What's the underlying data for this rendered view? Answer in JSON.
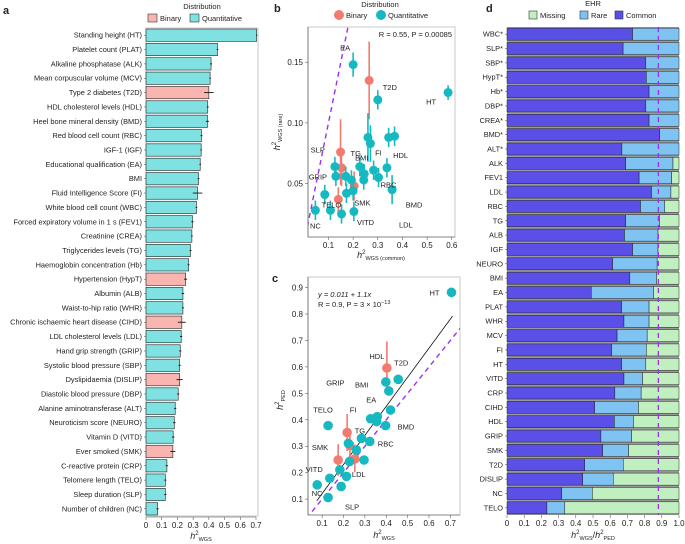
{
  "panels": {
    "a": "a",
    "b": "b",
    "c": "c",
    "d": "d"
  },
  "legend_distribution": {
    "title": "Distribution",
    "items": [
      "Binary",
      "Quantitative"
    ]
  },
  "legend_ehr": {
    "title": "EHR",
    "items": [
      "Missing",
      "Rare",
      "Common"
    ]
  },
  "colors": {
    "binary_bar": "#f9b6b1",
    "quant_bar": "#7fe1e1",
    "binary_point": "#f27b70",
    "quant_point": "#17b9c1",
    "common": "#5a4fe6",
    "rare": "#7ec3f1",
    "missing": "#c0f0c0",
    "reference_line": "#9b30f5"
  },
  "chart_data": [
    {
      "panel": "a",
      "type": "bar",
      "orientation": "horizontal",
      "xlabel": {
        "base": "h",
        "sup": "2",
        "sub": "WGS"
      },
      "xlim": [
        0,
        0.7
      ],
      "xticks": [
        "0",
        "0.1",
        "0.2",
        "0.3",
        "0.4",
        "0.5",
        "0.6",
        "0.7"
      ],
      "categories": [
        "Standing height (HT)",
        "Platelet count (PLAT)",
        "Alkaline phosphatase (ALK)",
        "Mean corpuscular volume (MCV)",
        "Type 2 diabetes (T2D)",
        "HDL cholesterol levels (HDL)",
        "Heel bone mineral density (BMD)",
        "Red blood cell count (RBC)",
        "IGF-1 (IGF)",
        "Educational qualification (EA)",
        "BMI",
        "Fluid Intelligence Score (FI)",
        "White blood cell count (WBC)",
        "Forced expiratory volume in 1 s (FEV1)",
        "Creatinine (CREA)",
        "Triglycerides levels (TG)",
        "Haemoglobin concentration (Hb)",
        "Hypertension (HypT)",
        "Albumin (ALB)",
        "Waist-to-hip ratio (WHR)",
        "Chronic ischaemic heart disease (CIHD)",
        "LDL cholesterol levels (LDL)",
        "Hand grip strength (GRIP)",
        "Systolic blood pressure (SBP)",
        "Dyslipidaemia (DISLIP)",
        "Diastolic blood pressure (DBP)",
        "Alanine aminotransferase (ALT)",
        "Neuroticism score (NEURO)",
        "Vitamin D (VITD)",
        "Ever smoked (SMK)",
        "C-reactive protein (CRP)",
        "Telomere length (TELO)",
        "Sleep duration (SLP)",
        "Number of children (NC)"
      ],
      "values": [
        0.704,
        0.455,
        0.414,
        0.408,
        0.4,
        0.393,
        0.391,
        0.353,
        0.351,
        0.345,
        0.334,
        0.328,
        0.321,
        0.296,
        0.292,
        0.283,
        0.271,
        0.252,
        0.235,
        0.235,
        0.228,
        0.224,
        0.218,
        0.214,
        0.214,
        0.205,
        0.186,
        0.18,
        0.173,
        0.171,
        0.133,
        0.123,
        0.123,
        0.074
      ],
      "errors": [
        0.004,
        0.005,
        0.006,
        0.005,
        0.03,
        0.006,
        0.01,
        0.006,
        0.005,
        0.005,
        0.006,
        0.03,
        0.005,
        0.007,
        0.005,
        0.006,
        0.006,
        0.01,
        0.008,
        0.006,
        0.025,
        0.007,
        0.007,
        0.007,
        0.02,
        0.007,
        0.007,
        0.008,
        0.008,
        0.016,
        0.008,
        0.007,
        0.007,
        0.007
      ],
      "distribution": [
        "Quantitative",
        "Quantitative",
        "Quantitative",
        "Quantitative",
        "Binary",
        "Quantitative",
        "Quantitative",
        "Quantitative",
        "Quantitative",
        "Quantitative",
        "Quantitative",
        "Quantitative",
        "Quantitative",
        "Quantitative",
        "Quantitative",
        "Quantitative",
        "Quantitative",
        "Binary",
        "Quantitative",
        "Quantitative",
        "Binary",
        "Quantitative",
        "Quantitative",
        "Quantitative",
        "Binary",
        "Quantitative",
        "Quantitative",
        "Quantitative",
        "Quantitative",
        "Binary",
        "Quantitative",
        "Quantitative",
        "Quantitative",
        "Quantitative"
      ]
    },
    {
      "panel": "b",
      "type": "scatter",
      "annotation": "R = 0.55, P = 0.00085",
      "xlabel": {
        "base": "h",
        "sup": "2",
        "sub": "WGS (common)"
      },
      "ylabel": {
        "base": "h",
        "sup": "2",
        "sub": "WGS (rare)"
      },
      "xlim": [
        0.017,
        0.613
      ],
      "ylim": [
        0.006,
        0.179
      ],
      "xticks": [
        0.1,
        0.2,
        0.3,
        0.4,
        0.5,
        0.6
      ],
      "yticks": [
        0.05,
        0.1,
        0.15
      ],
      "reference_line": "y = x",
      "points": [
        {
          "x": 0.2,
          "y": 0.148,
          "d": "Quantitative",
          "label": "EA",
          "err": 0.01
        },
        {
          "x": 0.265,
          "y": 0.135,
          "d": "Binary",
          "err": 0.032
        },
        {
          "x": 0.3,
          "y": 0.119,
          "d": "Quantitative",
          "label": "T2D",
          "err": 0.008
        },
        {
          "x": 0.585,
          "y": 0.125,
          "d": "Quantitative",
          "label": "HT",
          "err": 0.006
        },
        {
          "x": 0.26,
          "y": 0.088,
          "d": "Quantitative",
          "err": 0.02
        },
        {
          "x": 0.27,
          "y": 0.083,
          "d": "Quantitative",
          "label": "FI",
          "err": 0.015
        },
        {
          "x": 0.344,
          "y": 0.088,
          "d": "Quantitative",
          "err": 0.008
        },
        {
          "x": 0.368,
          "y": 0.089,
          "d": "Quantitative",
          "label": "HDL",
          "err": 0.008
        },
        {
          "x": 0.149,
          "y": 0.076,
          "d": "Binary",
          "label": "TG",
          "err": 0.027
        },
        {
          "x": 0.153,
          "y": 0.063,
          "d": "Binary",
          "err": 0.015
        },
        {
          "x": 0.204,
          "y": 0.048,
          "d": "Binary",
          "err": 0.012
        },
        {
          "x": 0.14,
          "y": 0.037,
          "d": "Binary",
          "label": "SMK",
          "err": 0.01
        },
        {
          "x": 0.126,
          "y": 0.064,
          "d": "Quantitative",
          "err": 0.008
        },
        {
          "x": 0.13,
          "y": 0.056,
          "d": "Quantitative",
          "label": "GRIP",
          "err": 0.008
        },
        {
          "x": 0.17,
          "y": 0.056,
          "d": "Quantitative",
          "err": 0.008
        },
        {
          "x": 0.193,
          "y": 0.053,
          "d": "Quantitative",
          "err": 0.008
        },
        {
          "x": 0.227,
          "y": 0.064,
          "d": "Quantitative",
          "label": "BMI",
          "err": 0.008
        },
        {
          "x": 0.245,
          "y": 0.058,
          "d": "Quantitative",
          "err": 0.008
        },
        {
          "x": 0.243,
          "y": 0.053,
          "d": "Quantitative",
          "err": 0.008
        },
        {
          "x": 0.283,
          "y": 0.061,
          "d": "Quantitative",
          "err": 0.008
        },
        {
          "x": 0.303,
          "y": 0.055,
          "d": "Quantitative",
          "label": "RBC",
          "err": 0.008
        },
        {
          "x": 0.337,
          "y": 0.063,
          "d": "Quantitative",
          "err": 0.008
        },
        {
          "x": 0.358,
          "y": 0.045,
          "d": "Quantitative",
          "label": "BMD",
          "err": 0.012
        },
        {
          "x": 0.085,
          "y": 0.041,
          "d": "Quantitative",
          "label": "SLP",
          "err": 0.008
        },
        {
          "x": 0.173,
          "y": 0.042,
          "d": "Quantitative",
          "err": 0.008
        },
        {
          "x": 0.2,
          "y": 0.044,
          "d": "Quantitative",
          "err": 0.008
        },
        {
          "x": 0.047,
          "y": 0.028,
          "d": "Quantitative",
          "label": "NC",
          "err": 0.008
        },
        {
          "x": 0.108,
          "y": 0.028,
          "d": "Quantitative",
          "label": "TELO",
          "err": 0.008
        },
        {
          "x": 0.153,
          "y": 0.025,
          "d": "Quantitative",
          "label": "VITD",
          "err": 0.008
        },
        {
          "x": 0.203,
          "y": 0.027,
          "d": "Quantitative",
          "label": "LDL",
          "err": 0.008
        }
      ]
    },
    {
      "panel": "c",
      "type": "scatter",
      "annotation": [
        "y = 0.011 + 1.1x",
        "R = 0.9, P = 3 × 10",
        "−13"
      ],
      "xlabel": {
        "base": "h",
        "sup": "2",
        "sub": "WGS"
      },
      "ylabel": {
        "base": "h",
        "sup": "2",
        "sub": "PED"
      },
      "xlim": [
        0.034,
        0.745
      ],
      "ylim": [
        0.04,
        0.94
      ],
      "xticks": [
        0.1,
        0.2,
        0.3,
        0.4,
        0.5,
        0.6,
        0.7
      ],
      "yticks": [
        0.1,
        0.2,
        0.3,
        0.4,
        0.5,
        0.6,
        0.7,
        0.8,
        0.9
      ],
      "fit": {
        "intercept": 0.011,
        "slope": 1.1,
        "x_range": [
          0.075,
          0.71
        ]
      },
      "reference_line": "y = x",
      "points": [
        {
          "x": 0.705,
          "y": 0.882,
          "d": "Quantitative",
          "label": "HT"
        },
        {
          "x": 0.403,
          "y": 0.596,
          "d": "Binary",
          "label": "HDL",
          "err": 0.1
        },
        {
          "x": 0.398,
          "y": 0.543,
          "d": "Quantitative"
        },
        {
          "x": 0.456,
          "y": 0.553,
          "d": "Quantitative",
          "label": "T2D"
        },
        {
          "x": 0.412,
          "y": 0.509,
          "d": "Quantitative"
        },
        {
          "x": 0.327,
          "y": 0.404,
          "d": "Quantitative",
          "label": "BMI"
        },
        {
          "x": 0.358,
          "y": 0.412,
          "d": "Quantitative",
          "label": "EA"
        },
        {
          "x": 0.355,
          "y": 0.393,
          "d": "Quantitative"
        },
        {
          "x": 0.42,
          "y": 0.437,
          "d": "Quantitative"
        },
        {
          "x": 0.397,
          "y": 0.378,
          "d": "Quantitative",
          "label": "BMD"
        },
        {
          "x": 0.128,
          "y": 0.378,
          "d": "Quantitative",
          "label": "TELO"
        },
        {
          "x": 0.217,
          "y": 0.352,
          "d": "Binary",
          "label": "FI",
          "err": 0.07
        },
        {
          "x": 0.23,
          "y": 0.303,
          "d": "Binary",
          "label": "TG",
          "err": 0.05
        },
        {
          "x": 0.175,
          "y": 0.248,
          "d": "Binary",
          "label": "SMK",
          "err": 0.06
        },
        {
          "x": 0.253,
          "y": 0.252,
          "d": "Binary",
          "label": "LDL",
          "err": 0.05
        },
        {
          "x": 0.223,
          "y": 0.311,
          "d": "Quantitative",
          "label": "GRIP"
        },
        {
          "x": 0.284,
          "y": 0.33,
          "d": "Quantitative"
        },
        {
          "x": 0.323,
          "y": 0.318,
          "d": "Quantitative",
          "label": "RBC"
        },
        {
          "x": 0.296,
          "y": 0.248,
          "d": "Quantitative"
        },
        {
          "x": 0.228,
          "y": 0.242,
          "d": "Quantitative"
        },
        {
          "x": 0.26,
          "y": 0.286,
          "d": "Quantitative"
        },
        {
          "x": 0.214,
          "y": 0.186,
          "d": "Quantitative"
        },
        {
          "x": 0.183,
          "y": 0.211,
          "d": "Quantitative"
        },
        {
          "x": 0.136,
          "y": 0.179,
          "d": "Quantitative",
          "label": "VITD"
        },
        {
          "x": 0.189,
          "y": 0.148,
          "d": "Quantitative"
        },
        {
          "x": 0.077,
          "y": 0.154,
          "d": "Quantitative",
          "label": "NC"
        },
        {
          "x": 0.128,
          "y": 0.106,
          "d": "Quantitative",
          "label": "SLP"
        }
      ]
    },
    {
      "panel": "d",
      "type": "bar",
      "orientation": "horizontal",
      "stacked": true,
      "xlabel": {
        "base": "h",
        "sup": "2",
        "sub": "WGS",
        "sep": "/",
        "base2": "h",
        "sup2": "2",
        "sub2": "PED"
      },
      "xlim": [
        0,
        1.0
      ],
      "xticks": [
        "0",
        "0.1",
        "0.2",
        "0.3",
        "0.4",
        "0.5",
        "0.6",
        "0.7",
        "0.8",
        "0.9",
        "1.0"
      ],
      "reference_value": 0.88,
      "categories": [
        "WBC*",
        "SLP*",
        "SBP*",
        "HypT*",
        "Hb*",
        "DBP*",
        "CREA*",
        "BMD*",
        "ALT*",
        "ALK",
        "FEV1",
        "LDL",
        "RBC",
        "TG",
        "ALB",
        "IGF",
        "NEURO",
        "BMI",
        "EA",
        "PLAT",
        "WHR",
        "MCV",
        "FI",
        "HT",
        "VITD",
        "CRP",
        "CIHD",
        "HDL",
        "GRIP",
        "SMK",
        "T2D",
        "DISLIP",
        "NC",
        "TELO"
      ],
      "series": [
        {
          "name": "Common",
          "values": [
            0.73,
            0.675,
            0.807,
            0.81,
            0.826,
            0.807,
            0.826,
            0.888,
            0.668,
            0.69,
            0.768,
            0.84,
            0.776,
            0.69,
            0.683,
            0.73,
            0.614,
            0.714,
            0.49,
            0.666,
            0.68,
            0.64,
            0.608,
            0.666,
            0.68,
            0.627,
            0.51,
            0.624,
            0.546,
            0.556,
            0.452,
            0.44,
            0.318,
            0.232
          ]
        },
        {
          "name": "Rare",
          "values": [
            0.27,
            0.325,
            0.193,
            0.19,
            0.174,
            0.193,
            0.174,
            0.112,
            0.332,
            0.275,
            0.189,
            0.113,
            0.141,
            0.198,
            0.195,
            0.148,
            0.259,
            0.155,
            0.363,
            0.16,
            0.146,
            0.175,
            0.202,
            0.141,
            0.108,
            0.153,
            0.254,
            0.113,
            0.178,
            0.151,
            0.224,
            0.178,
            0.178,
            0.104
          ]
        },
        {
          "name": "Missing",
          "values": [
            0,
            0,
            0,
            0,
            0,
            0,
            0,
            0,
            0,
            0.035,
            0.043,
            0.047,
            0.083,
            0.112,
            0.122,
            0.122,
            0.127,
            0.131,
            0.147,
            0.174,
            0.174,
            0.185,
            0.19,
            0.193,
            0.212,
            0.22,
            0.236,
            0.263,
            0.276,
            0.293,
            0.324,
            0.382,
            0.504,
            0.664
          ]
        }
      ]
    }
  ]
}
